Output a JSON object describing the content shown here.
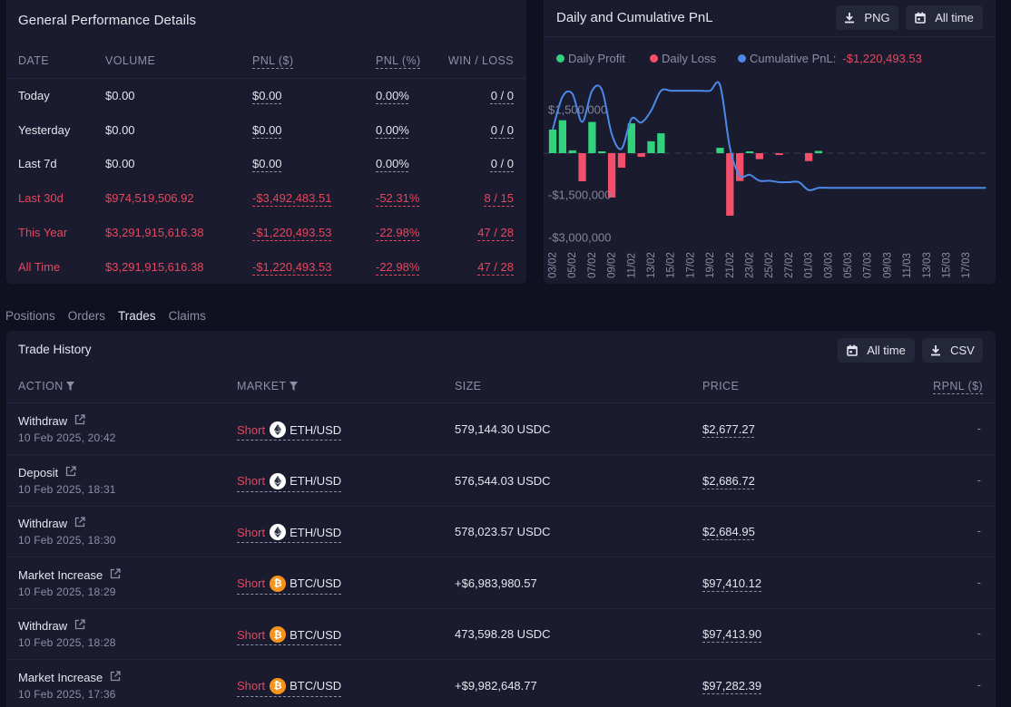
{
  "colors": {
    "negative_text": "#e5475f",
    "daily_profit": "#32d17c",
    "daily_loss": "#f44f6a",
    "cumulative_line": "#4a8ae6",
    "panel_bg": "#1a1b2e",
    "page_bg": "#0f1020",
    "btc_orange": "#f7931a"
  },
  "performance": {
    "title": "General Performance Details",
    "headers": {
      "date": "DATE",
      "volume": "VOLUME",
      "pnl_usd": "PNL ($)",
      "pnl_pct": "PNL (%)",
      "win_loss": "WIN / LOSS"
    },
    "rows": [
      {
        "date": "Today",
        "volume": "$0.00",
        "pnl_usd": "$0.00",
        "pnl_pct": "0.00%",
        "win_loss": "0 / 0",
        "negative": false
      },
      {
        "date": "Yesterday",
        "volume": "$0.00",
        "pnl_usd": "$0.00",
        "pnl_pct": "0.00%",
        "win_loss": "0 / 0",
        "negative": false
      },
      {
        "date": "Last 7d",
        "volume": "$0.00",
        "pnl_usd": "$0.00",
        "pnl_pct": "0.00%",
        "win_loss": "0 / 0",
        "negative": false
      },
      {
        "date": "Last 30d",
        "volume": "$974,519,506.92",
        "pnl_usd": "-$3,492,483.51",
        "pnl_pct": "-52.31%",
        "win_loss": "8 / 15",
        "negative": true
      },
      {
        "date": "This Year",
        "volume": "$3,291,915,616.38",
        "pnl_usd": "-$1,220,493.53",
        "pnl_pct": "-22.98%",
        "win_loss": "47 / 28",
        "negative": true
      },
      {
        "date": "All Time",
        "volume": "$3,291,915,616.38",
        "pnl_usd": "-$1,220,493.53",
        "pnl_pct": "-22.98%",
        "win_loss": "47 / 28",
        "negative": true
      }
    ]
  },
  "pnl_panel": {
    "title": "Daily and Cumulative PnL",
    "png_button": {
      "label": "PNG",
      "icon": "download-icon"
    },
    "range_button": {
      "label": "All time",
      "icon": "calendar-icon"
    },
    "legend": [
      {
        "label": "Daily Profit",
        "color": "#32d17c"
      },
      {
        "label": "Daily Loss",
        "color": "#f44f6a"
      },
      {
        "label": "Cumulative PnL:",
        "color": "#4a8ae6",
        "value": "-$1,220,493.53"
      }
    ]
  },
  "chart_data": {
    "type": "bar",
    "title": "Daily and Cumulative PnL",
    "xlabel": "",
    "ylabel": "",
    "ylim": [
      -3000000,
      3000000
    ],
    "grid": false,
    "legend_position": "top-left",
    "zero_line": "dashed",
    "x": [
      "03/02",
      "04/02",
      "05/02",
      "06/02",
      "07/02",
      "08/02",
      "09/02",
      "10/02",
      "11/02",
      "12/02",
      "13/02",
      "14/02",
      "15/02",
      "16/02",
      "17/02",
      "18/02",
      "19/02",
      "20/02",
      "21/02",
      "22/02",
      "23/02",
      "24/02",
      "25/02",
      "26/02",
      "27/02",
      "28/02",
      "01/03",
      "02/03",
      "03/03",
      "04/03",
      "05/03",
      "06/03",
      "07/03",
      "08/03",
      "09/03",
      "10/03",
      "11/03",
      "12/03",
      "13/03",
      "14/03",
      "15/03",
      "16/03",
      "17/03",
      "18/03",
      "19/03"
    ],
    "x_tick_labels": [
      "03/02",
      "05/02",
      "07/02",
      "09/02",
      "11/02",
      "13/02",
      "15/02",
      "17/02",
      "19/02",
      "21/02",
      "23/02",
      "25/02",
      "27/02",
      "01/03",
      "03/03",
      "05/03",
      "07/03",
      "09/03",
      "11/03",
      "13/03",
      "15/03",
      "17/03"
    ],
    "y_ticks": [
      {
        "value": 1500000,
        "label": "$1,500,000"
      },
      {
        "value": -1500000,
        "label": "-$1,500,000"
      },
      {
        "value": -3000000,
        "label": "-$3,000,000"
      }
    ],
    "series": [
      {
        "name": "Daily PnL",
        "type": "bar",
        "positive_label": "Daily Profit",
        "negative_label": "Daily Loss",
        "values": [
          830000,
          1160000,
          100000,
          -990000,
          1100000,
          30000,
          -1560000,
          -510000,
          1050000,
          -130000,
          420000,
          700000,
          0,
          0,
          0,
          0,
          0,
          190000,
          -2200000,
          -980000,
          30000,
          -210000,
          0,
          -50000,
          0,
          0,
          -280000,
          79506.47,
          0,
          0,
          0,
          0,
          0,
          0,
          0,
          0,
          0,
          0,
          0,
          0,
          0,
          0,
          0,
          0,
          0
        ]
      },
      {
        "name": "Cumulative PnL",
        "type": "line",
        "values": [
          830000,
          1990000,
          2090000,
          1100000,
          2200000,
          2230000,
          670000,
          160000,
          1210000,
          1080000,
          1500000,
          2200000,
          2200000,
          2200000,
          2200000,
          2200000,
          2200000,
          2390000,
          190000,
          -790000,
          -760000,
          -970000,
          -970000,
          -1020000,
          -1020000,
          -1020000,
          -1300000,
          -1220493.53,
          -1220493.53,
          -1220493.53,
          -1220493.53,
          -1220493.53,
          -1220493.53,
          -1220493.53,
          -1220493.53,
          -1220493.53,
          -1220493.53,
          -1220493.53,
          -1220493.53,
          -1220493.53,
          -1220493.53,
          -1220493.53,
          -1220493.53,
          -1220493.53,
          -1220493.53
        ]
      }
    ]
  },
  "tabs": [
    {
      "label": "Positions",
      "active": false
    },
    {
      "label": "Orders",
      "active": false
    },
    {
      "label": "Trades",
      "active": true
    },
    {
      "label": "Claims",
      "active": false
    }
  ],
  "trade_history": {
    "title": "Trade History",
    "range_button": {
      "label": "All time",
      "icon": "calendar-icon"
    },
    "csv_button": {
      "label": "CSV",
      "icon": "download-icon"
    },
    "headers": {
      "action": "ACTION",
      "market": "MARKET",
      "size": "SIZE",
      "price": "PRICE",
      "rpnl": "RPNL ($)"
    },
    "rows": [
      {
        "action": "Withdraw",
        "time": "10 Feb 2025, 20:42",
        "side": "Short",
        "asset_icon": "ethereum-icon",
        "pair": "ETH/USD",
        "size": "579,144.30 USDC",
        "price": "$2,677.27",
        "rpnl": "-"
      },
      {
        "action": "Deposit",
        "time": "10 Feb 2025, 18:31",
        "side": "Short",
        "asset_icon": "ethereum-icon",
        "pair": "ETH/USD",
        "size": "576,544.03 USDC",
        "price": "$2,686.72",
        "rpnl": "-"
      },
      {
        "action": "Withdraw",
        "time": "10 Feb 2025, 18:30",
        "side": "Short",
        "asset_icon": "ethereum-icon",
        "pair": "ETH/USD",
        "size": "578,023.57 USDC",
        "price": "$2,684.95",
        "rpnl": "-"
      },
      {
        "action": "Market Increase",
        "time": "10 Feb 2025, 18:29",
        "side": "Short",
        "asset_icon": "bitcoin-icon",
        "pair": "BTC/USD",
        "size": "+$6,983,980.57",
        "price": "$97,410.12",
        "rpnl": "-"
      },
      {
        "action": "Withdraw",
        "time": "10 Feb 2025, 18:28",
        "side": "Short",
        "asset_icon": "bitcoin-icon",
        "pair": "BTC/USD",
        "size": "473,598.28 USDC",
        "price": "$97,413.90",
        "rpnl": "-"
      },
      {
        "action": "Market Increase",
        "time": "10 Feb 2025, 17:36",
        "side": "Short",
        "asset_icon": "bitcoin-icon",
        "pair": "BTC/USD",
        "size": "+$9,982,648.77",
        "price": "$97,282.39",
        "rpnl": "-"
      }
    ]
  }
}
